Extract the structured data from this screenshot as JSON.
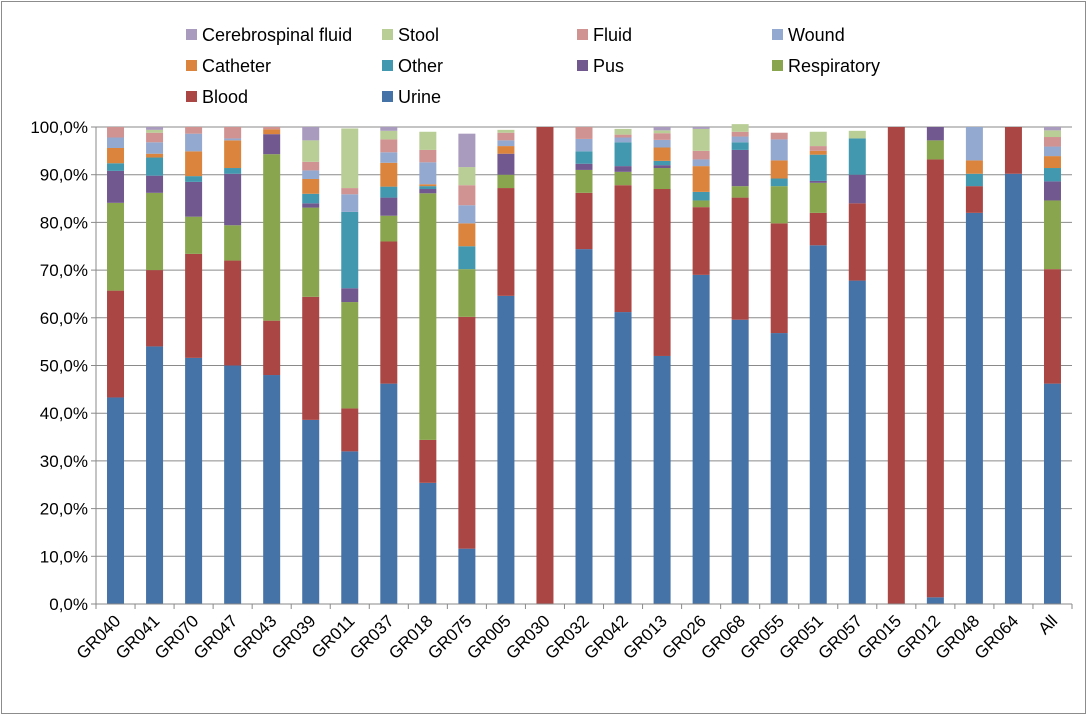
{
  "chart_data": {
    "type": "bar",
    "stacked": true,
    "categories": [
      "GR040",
      "GR041",
      "GR070",
      "GR047",
      "GR043",
      "GR039",
      "GR011",
      "GR037",
      "GR018",
      "GR075",
      "GR005",
      "GR030",
      "GR032",
      "GR042",
      "GR013",
      "GR026",
      "GR068",
      "GR055",
      "GR051",
      "GR057",
      "GR015",
      "GR012",
      "GR048",
      "GR064",
      "All"
    ],
    "y_tick_labels": [
      "0,0%",
      "10,0%",
      "20,0%",
      "30,0%",
      "40,0%",
      "50,0%",
      "60,0%",
      "70,0%",
      "80,0%",
      "90,0%",
      "100,0%"
    ],
    "ylim": [
      0,
      100
    ],
    "grid": true,
    "legend_position": "top",
    "series": [
      {
        "name": "Urine",
        "color": "#4572A7",
        "values": [
          43.3,
          54.0,
          51.6,
          50.0,
          48.0,
          38.6,
          32.0,
          46.2,
          25.4,
          11.6,
          64.6,
          0,
          74.4,
          61.2,
          52.0,
          69.0,
          59.6,
          56.8,
          75.2,
          67.8,
          0,
          1.4,
          82.0,
          90.2,
          46.2
        ]
      },
      {
        "name": "Blood",
        "color": "#AA4643",
        "values": [
          22.4,
          16.0,
          21.8,
          22.0,
          11.4,
          25.8,
          9.0,
          29.8,
          9.0,
          48.6,
          22.6,
          100,
          11.8,
          26.6,
          35.0,
          14.2,
          25.6,
          23.0,
          6.8,
          16.2,
          100,
          91.8,
          5.6,
          9.8,
          24.0
        ]
      },
      {
        "name": "Respiratory",
        "color": "#89A54E",
        "values": [
          18.4,
          16.2,
          7.8,
          7.4,
          34.9,
          18.7,
          22.3,
          5.4,
          51.7,
          10.0,
          2.8,
          0,
          4.8,
          2.8,
          4.4,
          1.4,
          2.4,
          7.8,
          6.3,
          0,
          0,
          4.0,
          0,
          0,
          14.4
        ]
      },
      {
        "name": "Pus",
        "color": "#71588F",
        "values": [
          6.7,
          3.6,
          7.3,
          10.8,
          4.2,
          0.9,
          2.9,
          3.8,
          0.9,
          0,
          4.4,
          0,
          1.3,
          1.2,
          0.6,
          0,
          7.6,
          0,
          0.4,
          6.0,
          0,
          2.8,
          0,
          0,
          4.0
        ]
      },
      {
        "name": "Other",
        "color": "#4198AF",
        "values": [
          1.6,
          3.8,
          1.2,
          1.2,
          0,
          2.0,
          16.0,
          2.3,
          0.6,
          4.8,
          0,
          0,
          2.6,
          5.0,
          0.9,
          1.8,
          1.6,
          1.6,
          5.5,
          7.6,
          0,
          0,
          2.6,
          0,
          2.8
        ]
      },
      {
        "name": "Catheter",
        "color": "#DB843D",
        "values": [
          3.2,
          0.8,
          5.2,
          5.8,
          1.0,
          3.1,
          0,
          5.0,
          0.4,
          4.8,
          1.6,
          0,
          0,
          0,
          2.8,
          5.4,
          0,
          3.8,
          0.8,
          0,
          0,
          0,
          2.8,
          0,
          2.5
        ]
      },
      {
        "name": "Wound",
        "color": "#93A9CF",
        "values": [
          2.2,
          2.4,
          3.7,
          0.4,
          0,
          1.8,
          3.7,
          2.2,
          4.6,
          3.8,
          1.2,
          0,
          2.6,
          1.0,
          1.6,
          1.4,
          1.2,
          4.4,
          0,
          0,
          0,
          0,
          7.0,
          0,
          2.0
        ]
      },
      {
        "name": "Fluid",
        "color": "#D19392",
        "values": [
          2.2,
          2.0,
          1.4,
          2.4,
          0.5,
          1.8,
          1.3,
          2.7,
          2.6,
          4.2,
          1.6,
          0,
          2.5,
          0.6,
          1.4,
          1.8,
          1.0,
          1.4,
          1.0,
          0,
          0,
          0,
          0,
          0,
          2.0
        ]
      },
      {
        "name": "Stool",
        "color": "#B9CD96",
        "values": [
          0,
          0.6,
          0,
          0,
          0,
          4.5,
          12.5,
          1.8,
          3.8,
          3.8,
          0.6,
          0,
          0,
          1.2,
          0.6,
          4.6,
          1.6,
          0,
          3.0,
          1.6,
          0,
          0,
          0,
          0,
          1.4
        ]
      },
      {
        "name": "Cerebrospinal fluid",
        "color": "#A99BBD",
        "values": [
          0,
          0.6,
          0,
          0,
          0,
          2.8,
          0,
          0.8,
          0,
          7.0,
          0,
          0,
          0,
          0,
          0.7,
          0.4,
          0,
          0,
          0,
          0,
          0,
          0,
          0,
          0,
          0.7
        ]
      }
    ]
  },
  "legend": {
    "items": [
      {
        "name": "Cerebrospinal fluid",
        "color": "#A99BBD"
      },
      {
        "name": "Stool",
        "color": "#B9CD96"
      },
      {
        "name": "Fluid",
        "color": "#D19392"
      },
      {
        "name": "Wound",
        "color": "#93A9CF"
      },
      {
        "name": "Catheter",
        "color": "#DB843D"
      },
      {
        "name": "Other",
        "color": "#4198AF"
      },
      {
        "name": "Pus",
        "color": "#71588F"
      },
      {
        "name": "Respiratory",
        "color": "#89A54E"
      },
      {
        "name": "Blood",
        "color": "#AA4643"
      },
      {
        "name": "Urine",
        "color": "#4572A7"
      }
    ]
  }
}
